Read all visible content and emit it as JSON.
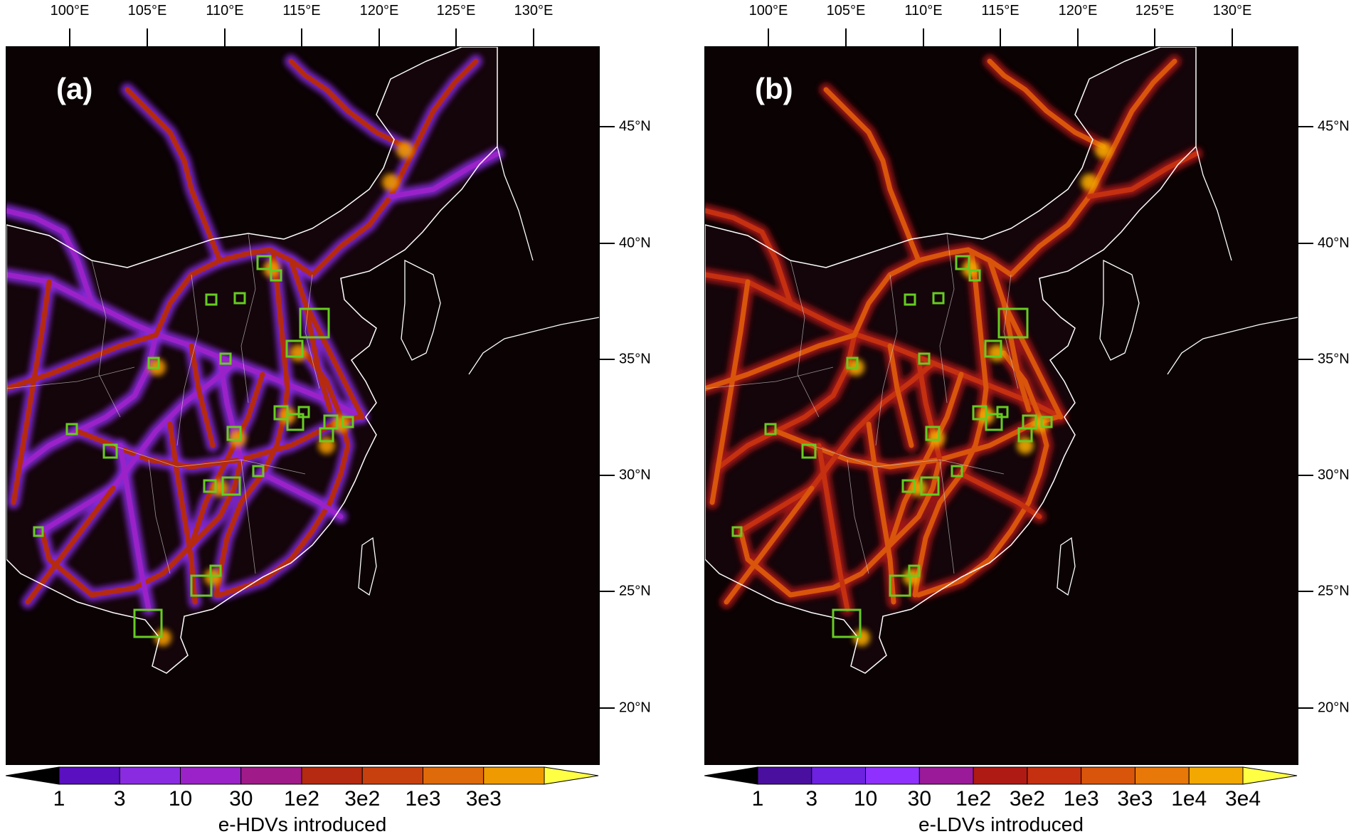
{
  "longitude_labels": [
    "100°E",
    "105°E",
    "110°E",
    "115°E",
    "120°E",
    "125°E",
    "130°E"
  ],
  "latitude_labels": [
    "45°N",
    "40°N",
    "35°N",
    "30°N",
    "25°N",
    "20°N"
  ],
  "panels": [
    {
      "label": "(a)",
      "colorbar_title": "e-HDVs introduced",
      "colorbar_ticks": [
        "1",
        "3",
        "10",
        "30",
        "1e2",
        "3e2",
        "1e3",
        "3e3"
      ],
      "colorbar_colors": [
        "#5a0fc0",
        "#8a2be2",
        "#9a22c8",
        "#a01a8a",
        "#b52a10",
        "#c8400e",
        "#de6a0a",
        "#ef9a00"
      ],
      "dominant_color": "purple"
    },
    {
      "label": "(b)",
      "colorbar_title": "e-LDVs introduced",
      "colorbar_ticks": [
        "1",
        "3",
        "10",
        "30",
        "1e2",
        "3e2",
        "1e3",
        "3e3",
        "1e4",
        "3e4"
      ],
      "colorbar_colors": [
        "#4b0fa0",
        "#6c22e0",
        "#8f30ff",
        "#9a1a9a",
        "#b01a14",
        "#c43010",
        "#d8550b",
        "#e87808",
        "#f2a800"
      ],
      "dominant_color": "orange"
    }
  ],
  "colors": {
    "background": "#0b0204",
    "boundary": "#ffffff",
    "highlight_box": "#66cc22",
    "low_end": "#000000",
    "high_end": "#ffff44"
  }
}
